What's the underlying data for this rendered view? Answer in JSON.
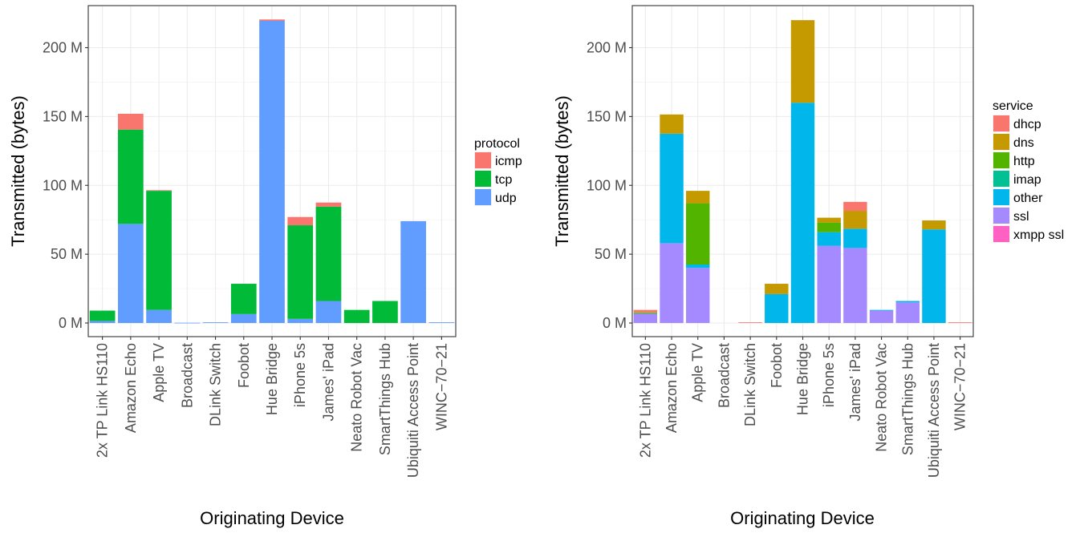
{
  "figure": {
    "x_axis_title": "Originating Device",
    "y_axis_title": "Transmitted (bytes)"
  },
  "chart_data": [
    {
      "type": "bar",
      "stacked": true,
      "categories": [
        "2x TP Link HS110",
        "Amazon Echo",
        "Apple TV",
        "Broadcast",
        "DLink Switch",
        "Foobot",
        "Hue Bridge",
        "iPhone 5s",
        "James' iPad",
        "Neato Robot Vac",
        "SmartThings Hub",
        "Ubiquiti Access Point",
        "WINC−70−21"
      ],
      "xlabel": "Originating Device",
      "ylabel": "Transmitted (bytes)",
      "ylim": [
        0,
        230
      ],
      "yunit": "M",
      "yticks": [
        0,
        50,
        100,
        150,
        200
      ],
      "ytick_labels": [
        "0 M",
        "50 M",
        "100 M",
        "150 M",
        "200 M"
      ],
      "grid": true,
      "legend_title": "protocol",
      "legend_position": "right",
      "series": [
        {
          "name": "udp",
          "color": "#619CFF",
          "values": [
            1.5,
            72,
            9.5,
            0.2,
            0.5,
            6.5,
            219.5,
            3,
            16,
            0,
            0,
            74,
            0.5
          ]
        },
        {
          "name": "tcp",
          "color": "#00BA38",
          "values": [
            7.5,
            68.5,
            86.5,
            0,
            0,
            22,
            0,
            68,
            68.5,
            9.5,
            16,
            0,
            0
          ]
        },
        {
          "name": "icmp",
          "color": "#F8766D",
          "values": [
            0,
            11.5,
            0.5,
            0,
            0,
            0,
            1,
            6,
            3,
            0,
            0,
            0,
            0
          ]
        }
      ]
    },
    {
      "type": "bar",
      "stacked": true,
      "categories": [
        "2x TP Link HS110",
        "Amazon Echo",
        "Apple TV",
        "Broadcast",
        "DLink Switch",
        "Foobot",
        "Hue Bridge",
        "iPhone 5s",
        "James' iPad",
        "Neato Robot Vac",
        "SmartThings Hub",
        "Ubiquiti Access Point",
        "WINC−70−21"
      ],
      "xlabel": "Originating Device",
      "ylabel": "Transmitted (bytes)",
      "ylim": [
        0,
        230
      ],
      "yunit": "M",
      "yticks": [
        0,
        50,
        100,
        150,
        200
      ],
      "ytick_labels": [
        "0 M",
        "50 M",
        "100 M",
        "150 M",
        "200 M"
      ],
      "grid": true,
      "legend_title": "service",
      "legend_position": "right",
      "series": [
        {
          "name": "xmpp ssl",
          "color": "#FF61C3",
          "values": [
            0,
            0,
            0,
            0,
            0,
            0,
            0,
            0,
            0,
            0,
            0,
            0,
            0
          ]
        },
        {
          "name": "ssl",
          "color": "#A58AFF",
          "values": [
            6.5,
            58,
            40,
            0,
            0,
            0,
            0,
            56,
            54.5,
            9,
            15,
            0,
            0
          ]
        },
        {
          "name": "other",
          "color": "#00B6EB",
          "values": [
            0.5,
            79.5,
            2.5,
            0,
            0,
            21,
            160,
            10,
            14,
            0.5,
            1,
            68,
            0
          ]
        },
        {
          "name": "imap",
          "color": "#00C094",
          "values": [
            0,
            0,
            0,
            0,
            0,
            0,
            0,
            0,
            0,
            0,
            0,
            0,
            0
          ]
        },
        {
          "name": "http",
          "color": "#53B400",
          "values": [
            0,
            0,
            44.5,
            0,
            0,
            0,
            0,
            7,
            0,
            0,
            0,
            0,
            0
          ]
        },
        {
          "name": "dns",
          "color": "#C49A00",
          "values": [
            1,
            14,
            9,
            0,
            0,
            7.5,
            60,
            3.5,
            13,
            0,
            0,
            6.5,
            0
          ]
        },
        {
          "name": "dhcp",
          "color": "#F8766D",
          "values": [
            1.5,
            0,
            0,
            0,
            0.5,
            0,
            0,
            0,
            6.5,
            0,
            0,
            0,
            0.5
          ]
        }
      ]
    }
  ]
}
